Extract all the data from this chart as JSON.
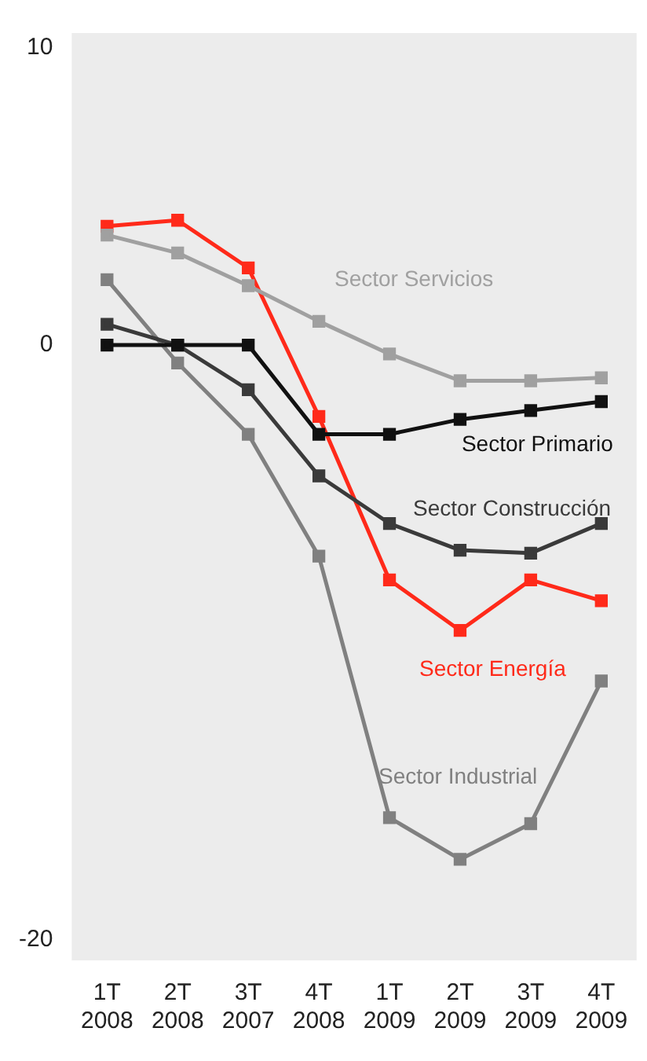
{
  "chart_data": {
    "type": "line",
    "categories": [
      "1T\n2008",
      "2T\n2008",
      "3T\n2007",
      "4T\n2008",
      "1T\n2009",
      "2T\n2009",
      "3T\n2009",
      "4T\n2009"
    ],
    "series": [
      {
        "name": "Sector Servicios",
        "color": "#a0a0a0",
        "values": [
          3.7,
          3.1,
          2.0,
          0.8,
          -0.3,
          -1.2,
          -1.2,
          -1.1
        ]
      },
      {
        "name": "Sector Primario",
        "color": "#111111",
        "values": [
          0,
          0,
          0,
          -3.0,
          -3.0,
          -2.5,
          -2.2,
          -1.9
        ]
      },
      {
        "name": "Sector Construcción",
        "color": "#3a3a3a",
        "values": [
          0.7,
          0,
          -1.5,
          -4.4,
          -6.0,
          -6.9,
          -7.0,
          -6.0
        ]
      },
      {
        "name": "Sector Energía",
        "color": "#ff2a1a",
        "values": [
          4.0,
          4.2,
          2.6,
          -2.4,
          -7.9,
          -9.6,
          -7.9,
          -8.6
        ]
      },
      {
        "name": "Sector Industrial",
        "color": "#808080",
        "values": [
          2.2,
          -0.6,
          -3.0,
          -7.1,
          -15.9,
          -17.3,
          -16.1,
          -11.3
        ]
      }
    ],
    "ylim": [
      -20.7,
      10.5
    ],
    "yticks": [
      -20,
      0,
      10
    ],
    "marker": "square",
    "line_style": "solid",
    "grid": false,
    "legend": false
  }
}
